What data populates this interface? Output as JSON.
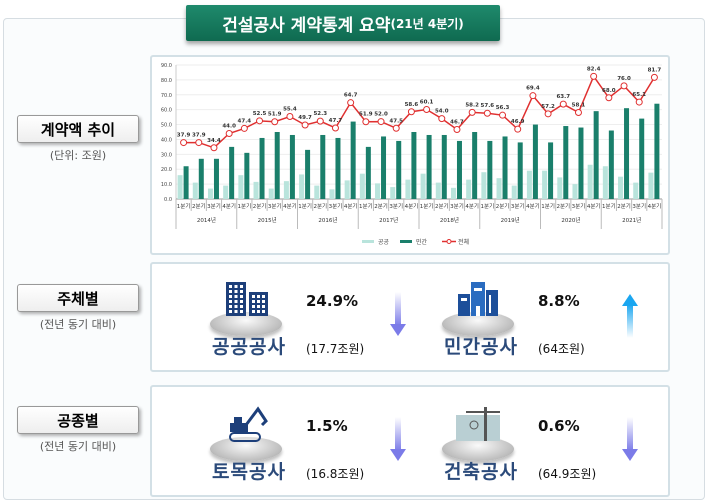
{
  "title": {
    "main": "건설공사 계약통계 요약",
    "sub": "(21년 4분기)"
  },
  "sections": {
    "trend": {
      "label": "계약액 추이",
      "sub": "(단위: 조원)"
    },
    "by_entity": {
      "label": "주체별",
      "sub": "(전년 동기 대비)"
    },
    "by_type": {
      "label": "공종별",
      "sub": "(전년 동기 대비)"
    }
  },
  "items": [
    {
      "name": "공공공사",
      "pct": "24.9%",
      "amount": "(17.7조원)",
      "direction": "down",
      "icon": "office-buildings-icon"
    },
    {
      "name": "민간공사",
      "pct": "8.8%",
      "amount": "(64조원)",
      "direction": "up",
      "icon": "city-buildings-icon"
    },
    {
      "name": "토목공사",
      "pct": "1.5%",
      "amount": "(16.8조원)",
      "direction": "down",
      "icon": "excavator-icon"
    },
    {
      "name": "건축공사",
      "pct": "0.6%",
      "amount": "(64.9조원)",
      "direction": "down",
      "icon": "tower-crane-icon"
    }
  ],
  "colors": {
    "public": "#b9e4dc",
    "private": "#1a7f6b",
    "total": "#e03030",
    "down": "#7b7be8",
    "up": "#1aa6f0"
  },
  "chart_data": {
    "type": "bar",
    "ylim": [
      0,
      90
    ],
    "yticks": [
      "0.0",
      "10.0",
      "20.0",
      "30.0",
      "40.0",
      "50.0",
      "60.0",
      "70.0",
      "80.0",
      "90.0"
    ],
    "quarters": [
      "1분기",
      "2분기",
      "3분기",
      "4분기"
    ],
    "years": [
      "2014년",
      "2015년",
      "2016년",
      "2017년",
      "2018년",
      "2019년",
      "2020년",
      "2021년"
    ],
    "series": [
      {
        "name": "공공",
        "type": "bar",
        "values": [
          16,
          11,
          7,
          9,
          16,
          11.5,
          7,
          12,
          16.5,
          9,
          6.5,
          12.5,
          17,
          10.5,
          8,
          13,
          17,
          11,
          7.5,
          13,
          18,
          14,
          9,
          19,
          19,
          14.5,
          10,
          23,
          22,
          15,
          11,
          17.7
        ]
      },
      {
        "name": "민간",
        "type": "bar",
        "values": [
          22,
          27,
          27,
          35,
          31,
          41,
          45,
          43,
          33,
          43,
          41,
          52,
          35,
          42,
          39,
          45,
          43,
          43,
          39,
          45,
          39,
          42,
          38,
          50,
          38,
          49,
          48,
          59,
          46,
          61,
          54,
          64
        ]
      },
      {
        "name": "전체",
        "type": "line",
        "values": [
          37.9,
          37.9,
          34.4,
          44.0,
          47.4,
          52.5,
          51.9,
          55.4,
          49.7,
          52.3,
          47.7,
          64.7,
          51.9,
          52.0,
          47.5,
          58.6,
          60.1,
          54.0,
          46.7,
          58.2,
          57.6,
          56.3,
          46.9,
          69.4,
          57.2,
          63.7,
          58.1,
          82.4,
          68.0,
          76.0,
          65.1,
          81.7
        ]
      }
    ],
    "legend": "bottom"
  }
}
